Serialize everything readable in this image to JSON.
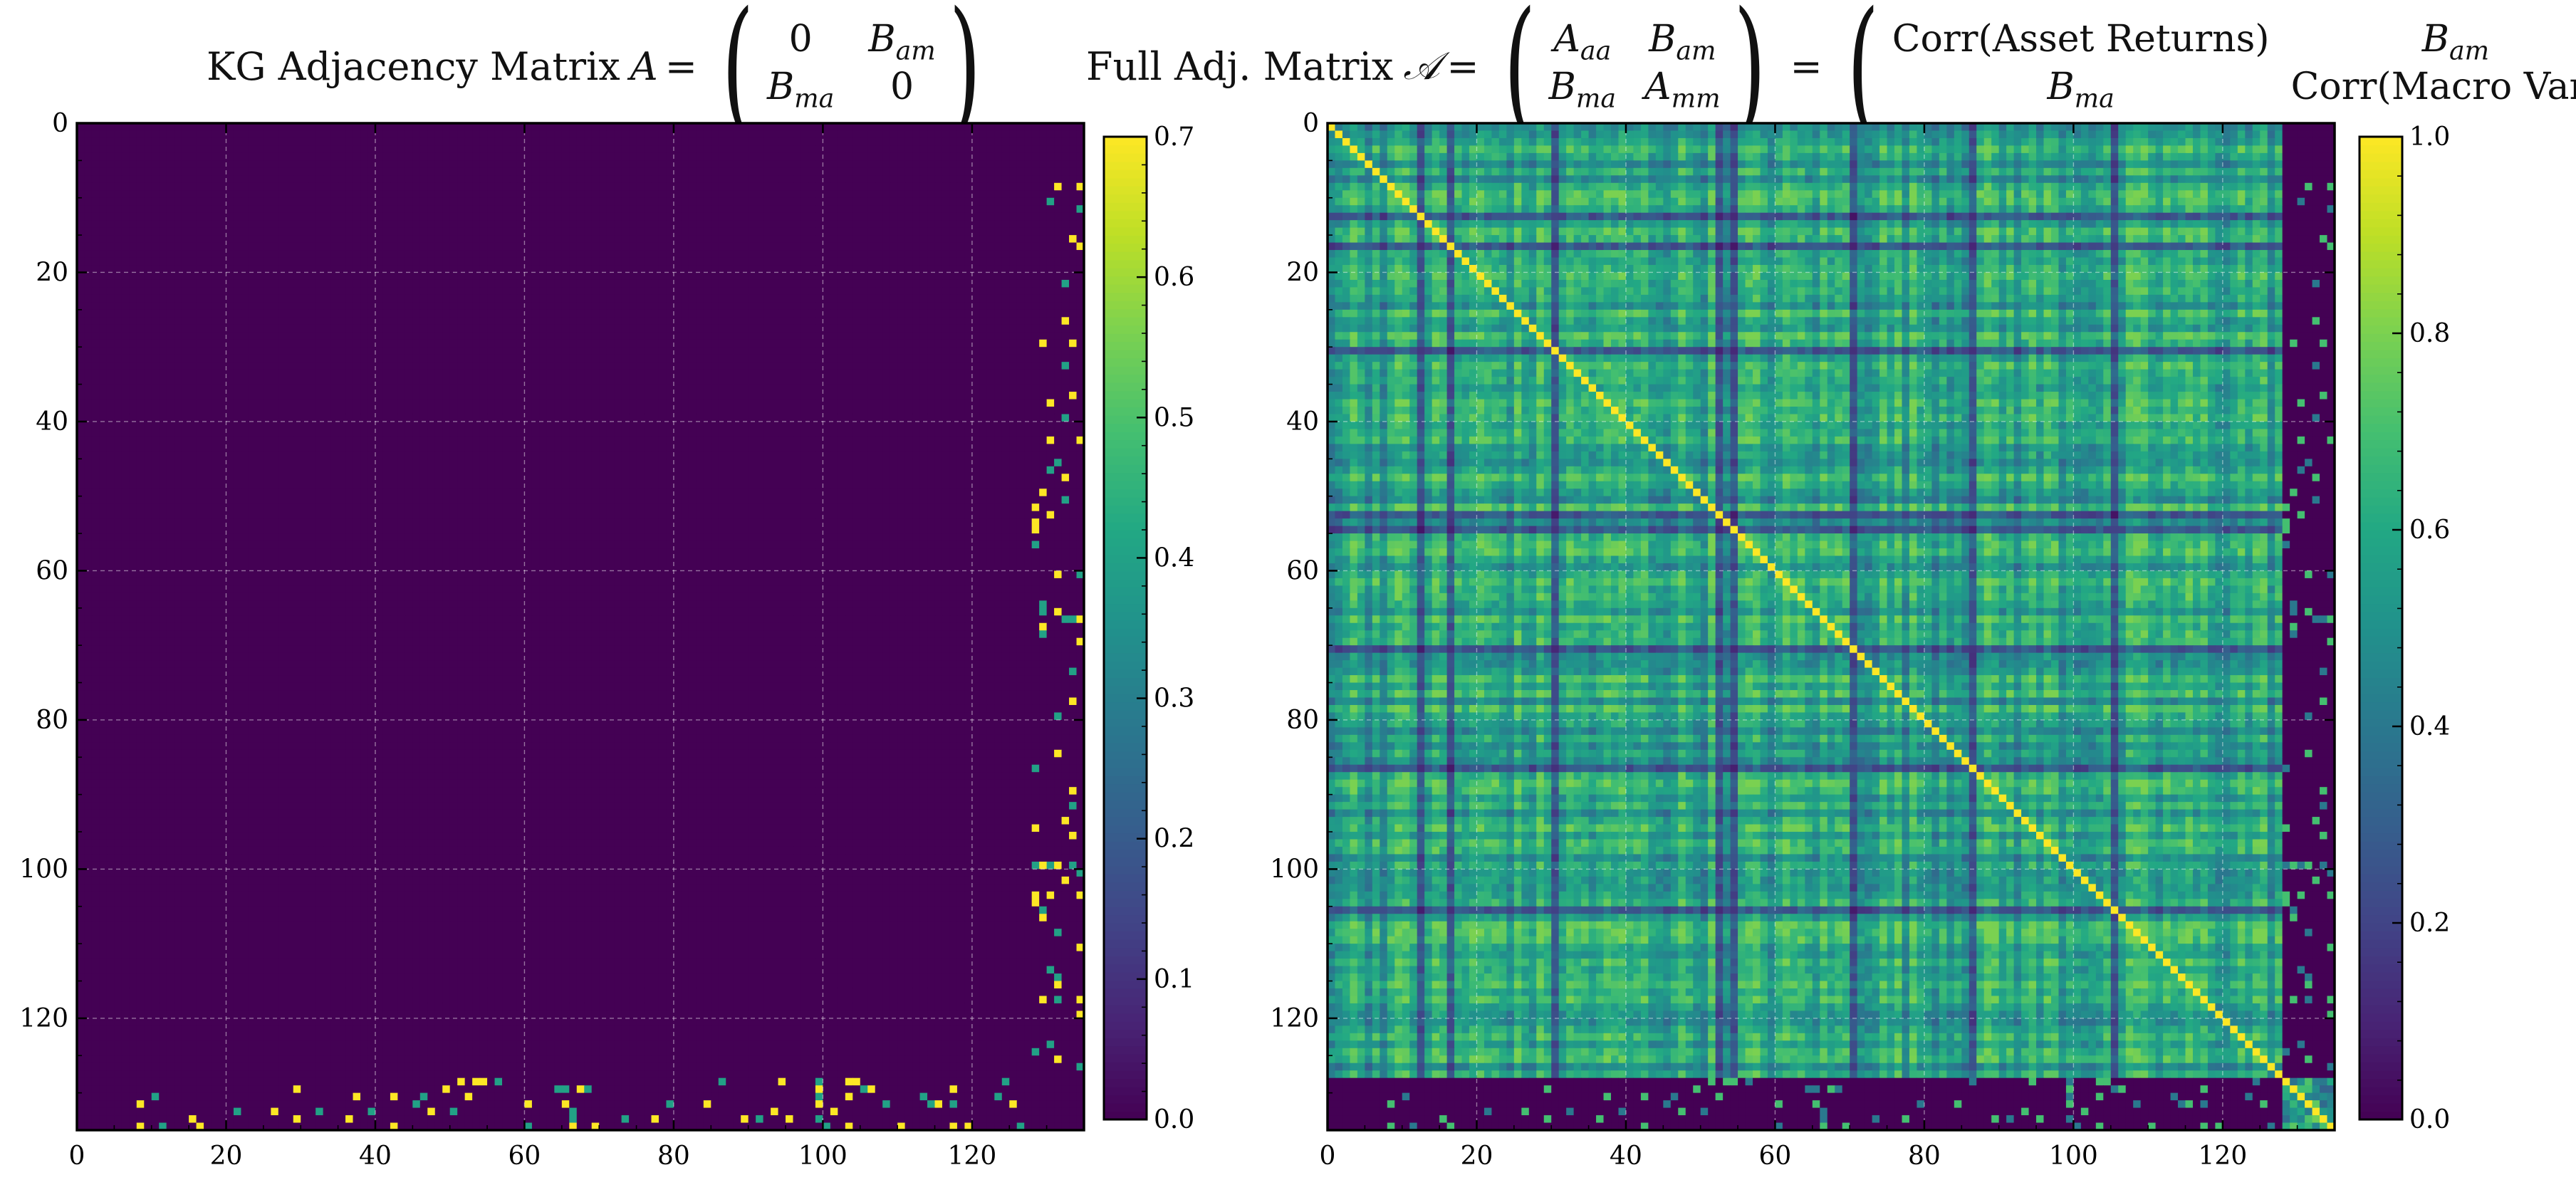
{
  "chart_data": [
    {
      "type": "heatmap",
      "title": {
        "prefix": "KG Adjacency Matrix",
        "symbol": "A",
        "matrix": [
          [
            "0",
            "B_am"
          ],
          [
            "B_ma",
            "0"
          ]
        ]
      },
      "n": 135,
      "colormap": "viridis",
      "xlim": [
        0,
        135
      ],
      "ylim": [
        0,
        135
      ],
      "x_ticks": [
        0,
        20,
        40,
        60,
        80,
        100,
        120
      ],
      "y_ticks": [
        0,
        20,
        40,
        60,
        80,
        100,
        120
      ],
      "grid": true,
      "colorbar": {
        "min": 0.0,
        "max": 0.7,
        "ticks": [
          "0.0",
          "0.1",
          "0.2",
          "0.3",
          "0.4",
          "0.5",
          "0.6",
          "0.7"
        ]
      },
      "structure": {
        "asset_block": [
          0,
          127
        ],
        "macro_block": [
          128,
          134
        ],
        "A_aa_value": 0.0,
        "A_mm_value": 0.0,
        "B_am_values": [
          0.4,
          0.7
        ],
        "B_am_density": 0.08
      }
    },
    {
      "type": "heatmap",
      "title": {
        "prefix": "Full Adj. Matrix",
        "symbol": "𝒜",
        "matrix": [
          [
            "A_aa",
            "B_am"
          ],
          [
            "B_ma",
            "A_mm"
          ]
        ],
        "equals_matrix": [
          [
            "Corr(Asset Returns)",
            "B_am"
          ],
          [
            "B_ma",
            "Corr(Macro Vars)"
          ]
        ]
      },
      "n": 135,
      "colormap": "viridis",
      "xlim": [
        0,
        135
      ],
      "ylim": [
        0,
        135
      ],
      "x_ticks": [
        0,
        20,
        40,
        60,
        80,
        100,
        120
      ],
      "y_ticks": [
        0,
        20,
        40,
        60,
        80,
        100,
        120
      ],
      "grid": true,
      "colorbar": {
        "min": 0.0,
        "max": 1.0,
        "ticks": [
          "0.0",
          "0.2",
          "0.4",
          "0.6",
          "0.8",
          "1.0"
        ]
      },
      "structure": {
        "asset_block": [
          0,
          127
        ],
        "macro_block": [
          128,
          134
        ],
        "diagonal_value": 1.0,
        "A_aa_range": [
          0.15,
          0.75
        ],
        "A_aa_mean": 0.47,
        "low_correlation_assets": [
          12,
          16,
          30,
          52,
          54,
          70,
          86,
          105
        ],
        "macro_corr_range": [
          0.3,
          1.0
        ],
        "B_am_values": [
          0.4,
          0.7
        ],
        "B_am_density": 0.08
      }
    }
  ]
}
